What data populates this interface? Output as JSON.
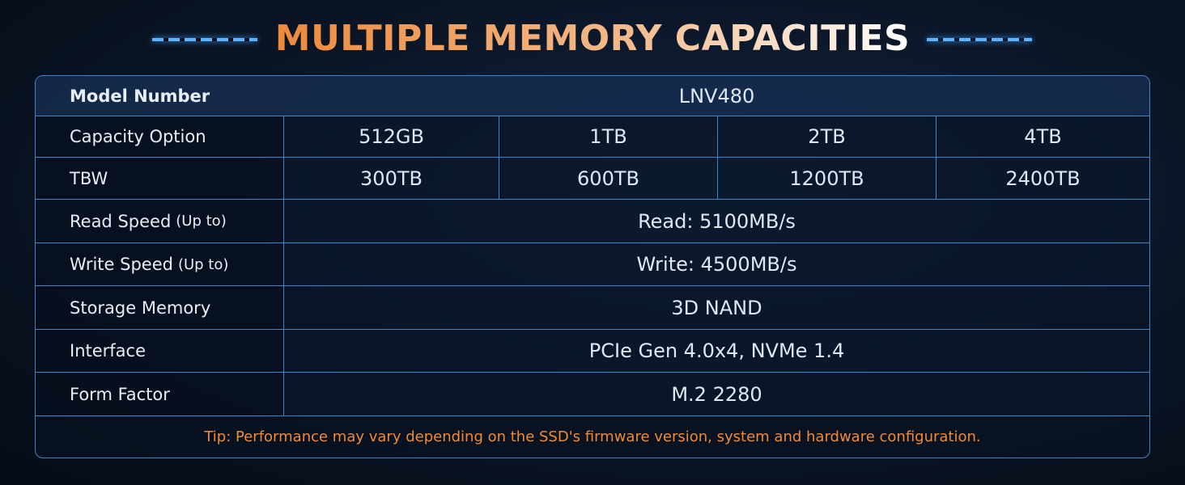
{
  "title": "MULTIPLE MEMORY CAPACITIES",
  "table": {
    "rows": [
      {
        "label": "Model Number",
        "cells": [
          "LNV480"
        ]
      },
      {
        "label": "Capacity Option",
        "cells": [
          "512GB",
          "1TB",
          "2TB",
          "4TB"
        ]
      },
      {
        "label": "TBW",
        "cells": [
          "300TB",
          "600TB",
          "1200TB",
          "2400TB"
        ]
      },
      {
        "label": "Read Speed",
        "note": "(Up to)",
        "cells": [
          "Read: 5100MB/s"
        ]
      },
      {
        "label": "Write Speed",
        "note": "(Up to)",
        "cells": [
          "Write: 4500MB/s"
        ]
      },
      {
        "label": "Storage Memory",
        "cells": [
          "3D NAND"
        ]
      },
      {
        "label": "Interface",
        "cells": [
          "PCIe Gen 4.0x4, NVMe 1.4"
        ]
      },
      {
        "label": "Form Factor",
        "cells": [
          "M.2 2280"
        ]
      }
    ]
  },
  "tip": "Tip: Performance may vary depending on the SSD's firmware version, system and hardware configuration."
}
